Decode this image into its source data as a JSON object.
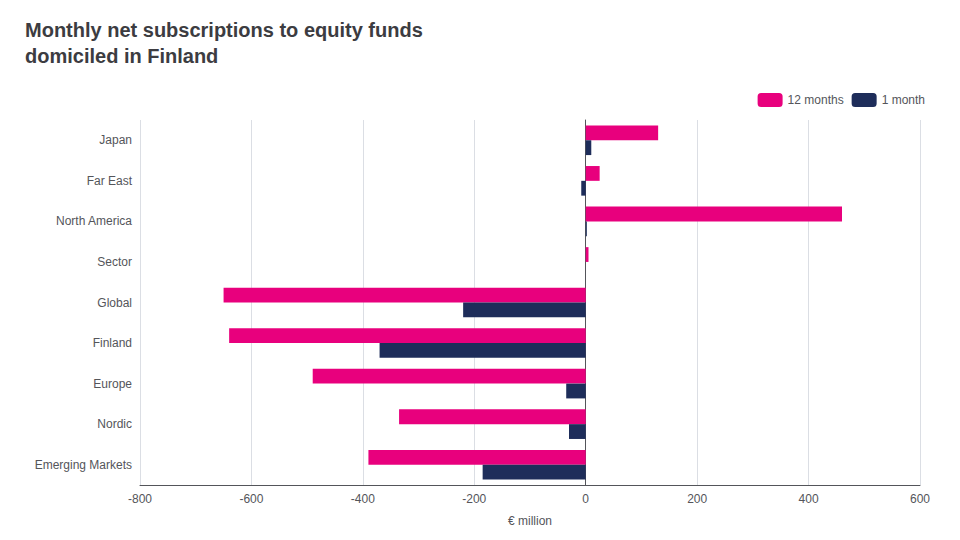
{
  "chart_data": {
    "type": "bar",
    "orientation": "horizontal",
    "title": "Monthly net subscriptions to equity funds\ndomiciled in Finland",
    "categories": [
      "Japan",
      "Far East",
      "North America",
      "Sector",
      "Global",
      "Finland",
      "Europe",
      "Nordic",
      "Emerging Markets"
    ],
    "series": [
      {
        "name": "12 months",
        "color": "#e8007d",
        "values": [
          130,
          25,
          460,
          5,
          -650,
          -640,
          -490,
          -335,
          -390
        ]
      },
      {
        "name": "1 month",
        "color": "#1e2d5a",
        "values": [
          10,
          -8,
          2,
          0,
          -220,
          -370,
          -35,
          -30,
          -185
        ]
      }
    ],
    "xlabel": "€ million",
    "xlim": [
      -800,
      600
    ],
    "xticks": [
      -800,
      -600,
      -400,
      -200,
      0,
      200,
      400,
      600
    ],
    "grid": true,
    "legend": "right"
  }
}
